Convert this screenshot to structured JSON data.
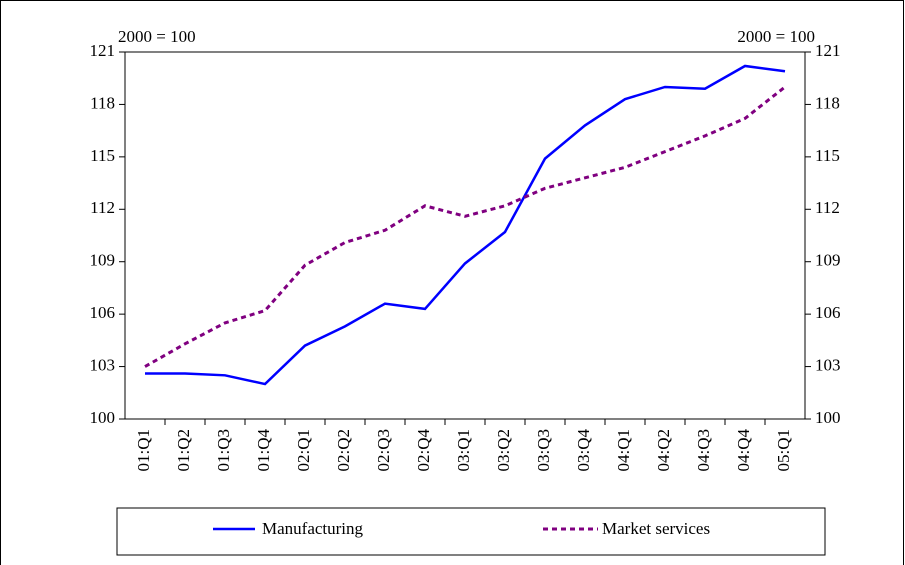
{
  "chart_data": {
    "type": "line",
    "y_label": "2000 = 100",
    "y2_label": "2000 = 100",
    "categories": [
      "01:Q1",
      "01:Q2",
      "01:Q3",
      "01:Q4",
      "02:Q1",
      "02:Q2",
      "02:Q3",
      "02:Q4",
      "03:Q1",
      "03:Q2",
      "03:Q3",
      "03:Q4",
      "04:Q1",
      "04:Q2",
      "04:Q3",
      "04:Q4",
      "05:Q1"
    ],
    "series": [
      {
        "name": "Manufacturing",
        "color": "#0000ff",
        "dashed": false,
        "values": [
          102.6,
          102.6,
          102.5,
          102.0,
          104.2,
          105.3,
          106.6,
          106.3,
          108.9,
          110.7,
          114.9,
          116.8,
          118.3,
          119.0,
          118.9,
          120.2,
          119.9
        ]
      },
      {
        "name": "Market services",
        "color": "#800080",
        "dashed": true,
        "values": [
          103.0,
          104.3,
          105.5,
          106.2,
          108.8,
          110.1,
          110.8,
          112.2,
          111.6,
          112.2,
          113.2,
          113.8,
          114.4,
          115.3,
          116.2,
          117.2,
          119.0
        ]
      }
    ],
    "ylim": [
      100,
      121
    ],
    "yticks": [
      100,
      103,
      106,
      109,
      112,
      115,
      118,
      121
    ],
    "y2lim": [
      100,
      121
    ],
    "y2ticks": [
      100,
      103,
      106,
      109,
      112,
      115,
      118,
      121
    ],
    "legend": "bottom"
  }
}
